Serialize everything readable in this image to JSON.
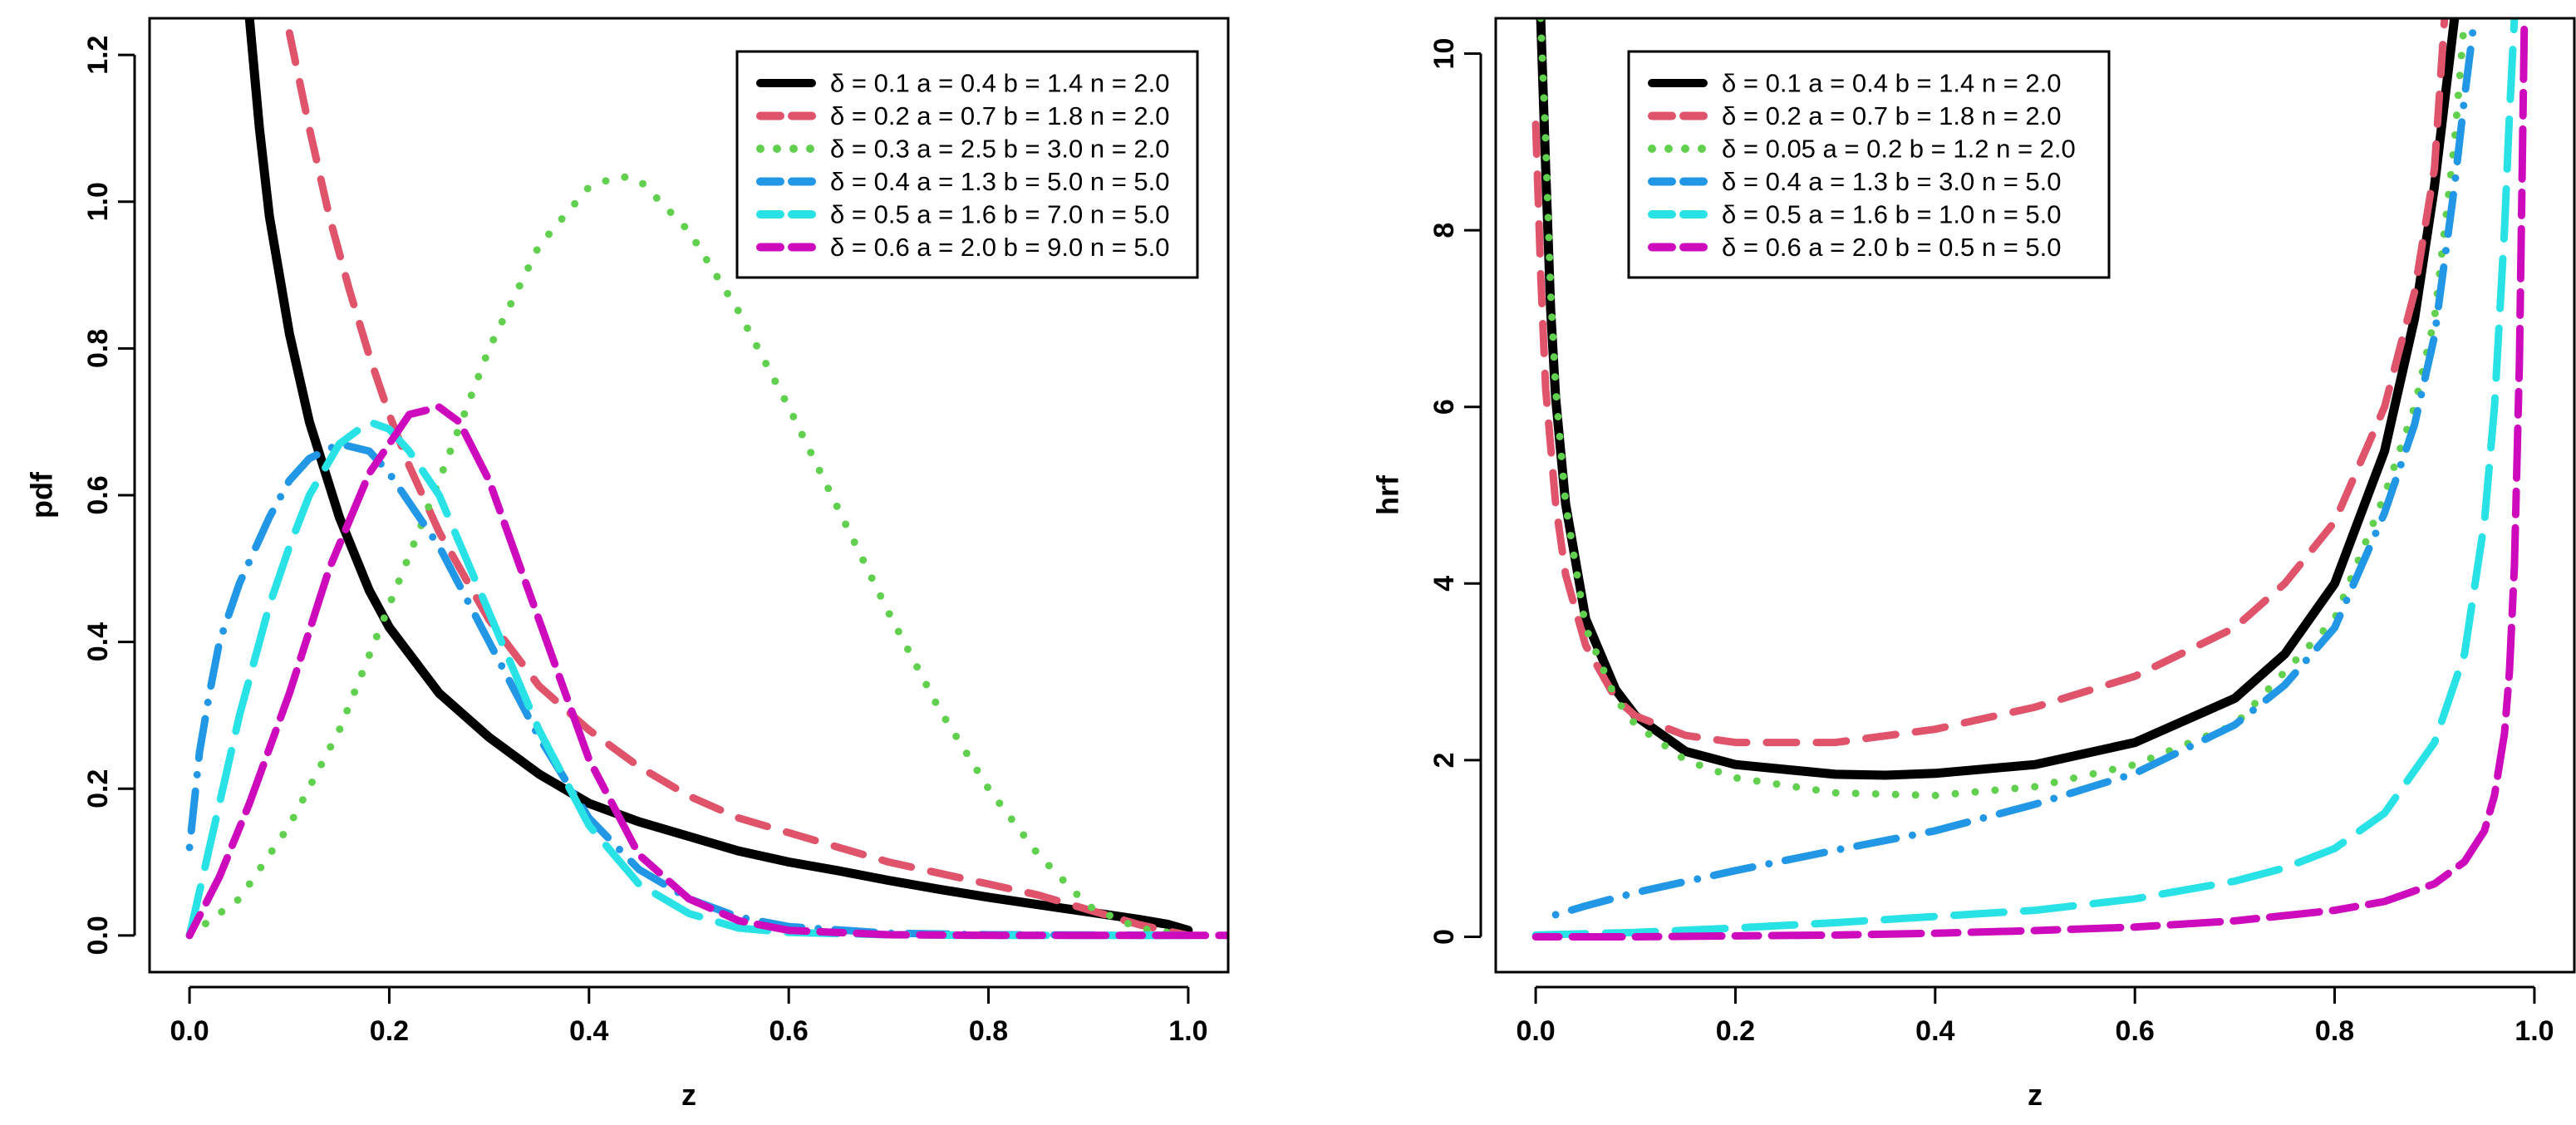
{
  "chart_data": [
    {
      "type": "line",
      "xlabel": "z",
      "ylabel": "pdf",
      "xlim": [
        -0.04,
        1.04
      ],
      "ylim": [
        -0.05,
        1.25
      ],
      "xticks": [
        "0.0",
        "0.2",
        "0.4",
        "0.6",
        "0.8",
        "1.0"
      ],
      "yticks": [
        "0.0",
        "0.2",
        "0.4",
        "0.6",
        "0.8",
        "1.0",
        "1.2"
      ],
      "legend_position": "top-right",
      "series": [
        {
          "name": "δ = 0.1  a = 0.4  b = 1.4  n = 2.0",
          "color": "#000000",
          "style": "solid",
          "x": [
            0.06,
            0.07,
            0.08,
            0.1,
            0.12,
            0.15,
            0.18,
            0.2,
            0.25,
            0.3,
            0.35,
            0.4,
            0.45,
            0.5,
            0.55,
            0.6,
            0.65,
            0.7,
            0.75,
            0.8,
            0.85,
            0.9,
            0.95,
            0.98,
            1.0
          ],
          "y": [
            1.25,
            1.1,
            0.98,
            0.82,
            0.7,
            0.57,
            0.47,
            0.42,
            0.33,
            0.27,
            0.22,
            0.18,
            0.155,
            0.135,
            0.115,
            0.1,
            0.088,
            0.075,
            0.063,
            0.052,
            0.042,
            0.032,
            0.022,
            0.015,
            0.007
          ]
        },
        {
          "name": "δ = 0.2  a = 0.7  b = 1.8  n = 2.0",
          "color": "#DF536B",
          "style": "dashed",
          "x": [
            0.1,
            0.12,
            0.14,
            0.16,
            0.18,
            0.2,
            0.22,
            0.25,
            0.3,
            0.35,
            0.4,
            0.45,
            0.5,
            0.55,
            0.6,
            0.65,
            0.7,
            0.75,
            0.8,
            0.85,
            0.9,
            0.95,
            1.0
          ],
          "y": [
            1.23,
            1.1,
            0.98,
            0.88,
            0.79,
            0.71,
            0.64,
            0.55,
            0.43,
            0.34,
            0.28,
            0.23,
            0.19,
            0.16,
            0.14,
            0.12,
            0.1,
            0.085,
            0.07,
            0.055,
            0.035,
            0.015,
            0.0
          ]
        },
        {
          "name": "δ = 0.3  a = 2.5  b = 3.0  n = 2.0",
          "color": "#61D04F",
          "style": "dotted",
          "x": [
            0.0,
            0.05,
            0.1,
            0.15,
            0.2,
            0.25,
            0.3,
            0.35,
            0.4,
            0.43,
            0.45,
            0.5,
            0.55,
            0.6,
            0.65,
            0.7,
            0.75,
            0.8,
            0.85,
            0.9,
            0.95,
            1.0
          ],
          "y": [
            0.0,
            0.05,
            0.15,
            0.28,
            0.45,
            0.62,
            0.8,
            0.94,
            1.02,
            1.035,
            1.03,
            0.96,
            0.85,
            0.72,
            0.58,
            0.44,
            0.31,
            0.2,
            0.11,
            0.04,
            0.01,
            0.0
          ]
        },
        {
          "name": "δ = 0.4  a = 1.3  b = 5.0  n = 5.0",
          "color": "#2297E6",
          "style": "dotdash",
          "x": [
            0.0,
            0.01,
            0.02,
            0.03,
            0.05,
            0.08,
            0.1,
            0.12,
            0.15,
            0.18,
            0.2,
            0.25,
            0.3,
            0.35,
            0.4,
            0.45,
            0.5,
            0.55,
            0.6,
            0.7,
            0.8,
            1.0
          ],
          "y": [
            0.12,
            0.25,
            0.33,
            0.4,
            0.48,
            0.57,
            0.62,
            0.65,
            0.67,
            0.66,
            0.63,
            0.53,
            0.4,
            0.27,
            0.16,
            0.09,
            0.05,
            0.025,
            0.012,
            0.003,
            0.001,
            0.0
          ]
        },
        {
          "name": "δ = 0.5  a = 1.6  b = 7.0  n = 5.0",
          "color": "#28E2E5",
          "style": "longdash",
          "x": [
            0.0,
            0.02,
            0.05,
            0.08,
            0.1,
            0.12,
            0.15,
            0.18,
            0.2,
            0.22,
            0.25,
            0.3,
            0.35,
            0.4,
            0.45,
            0.5,
            0.55,
            0.6,
            0.7,
            0.8,
            1.0
          ],
          "y": [
            0.0,
            0.12,
            0.3,
            0.45,
            0.53,
            0.6,
            0.67,
            0.7,
            0.69,
            0.66,
            0.6,
            0.44,
            0.28,
            0.15,
            0.07,
            0.03,
            0.01,
            0.004,
            0.001,
            0.0,
            0.0
          ]
        },
        {
          "name": "δ = 0.6  a = 2.0  b = 9.0  n = 5.0",
          "color": "#CD0BBC",
          "style": "twodash",
          "x": [
            0.0,
            0.03,
            0.06,
            0.1,
            0.14,
            0.18,
            0.22,
            0.25,
            0.27,
            0.3,
            0.35,
            0.4,
            0.45,
            0.5,
            0.55,
            0.6,
            0.7,
            0.8,
            1.0,
            1.04
          ],
          "y": [
            0.0,
            0.08,
            0.18,
            0.33,
            0.5,
            0.63,
            0.71,
            0.72,
            0.7,
            0.62,
            0.43,
            0.24,
            0.11,
            0.05,
            0.02,
            0.007,
            0.001,
            0.0,
            0.0,
            0.0
          ]
        }
      ]
    },
    {
      "type": "line",
      "xlabel": "z",
      "ylabel": "hrf",
      "xlim": [
        -0.04,
        1.04
      ],
      "ylim": [
        -0.4,
        10.4
      ],
      "xticks": [
        "0.0",
        "0.2",
        "0.4",
        "0.6",
        "0.8",
        "1.0"
      ],
      "yticks": [
        "0",
        "2",
        "4",
        "6",
        "8",
        "10"
      ],
      "legend_position": "top-left",
      "series": [
        {
          "name": "δ = 0.1  a = 0.4  b = 1.4  n = 2.0",
          "color": "#000000",
          "style": "solid",
          "x": [
            0.005,
            0.01,
            0.015,
            0.02,
            0.03,
            0.05,
            0.08,
            0.1,
            0.15,
            0.2,
            0.3,
            0.35,
            0.4,
            0.5,
            0.6,
            0.7,
            0.75,
            0.8,
            0.85,
            0.88,
            0.9,
            0.92
          ],
          "y": [
            10.4,
            8.7,
            7.1,
            6.1,
            4.9,
            3.6,
            2.8,
            2.5,
            2.1,
            1.95,
            1.84,
            1.83,
            1.85,
            1.95,
            2.2,
            2.7,
            3.2,
            4.0,
            5.5,
            7.0,
            8.5,
            10.4
          ]
        },
        {
          "name": "δ = 0.2  a = 0.7  b = 1.8  n = 2.0",
          "color": "#DF536B",
          "style": "dashed",
          "x": [
            0.0,
            0.005,
            0.01,
            0.02,
            0.03,
            0.05,
            0.08,
            0.1,
            0.15,
            0.2,
            0.3,
            0.4,
            0.5,
            0.6,
            0.7,
            0.75,
            0.8,
            0.85,
            0.88,
            0.9,
            0.91
          ],
          "y": [
            9.2,
            7.5,
            6.2,
            4.9,
            4.1,
            3.3,
            2.7,
            2.5,
            2.28,
            2.2,
            2.2,
            2.35,
            2.6,
            2.95,
            3.5,
            4.0,
            4.7,
            6.0,
            7.3,
            8.7,
            10.4
          ]
        },
        {
          "name": "δ = 0.05  a = 0.2  b = 1.2  n = 2.0",
          "color": "#61D04F",
          "style": "dotted",
          "x": [
            0.005,
            0.01,
            0.015,
            0.02,
            0.03,
            0.05,
            0.08,
            0.1,
            0.15,
            0.2,
            0.3,
            0.4,
            0.5,
            0.6,
            0.7,
            0.8,
            0.85,
            0.88,
            0.9,
            0.92,
            0.93
          ],
          "y": [
            10.4,
            9.0,
            7.3,
            6.2,
            4.9,
            3.5,
            2.7,
            2.4,
            2.0,
            1.8,
            1.63,
            1.6,
            1.7,
            1.95,
            2.4,
            3.6,
            5.0,
            6.0,
            7.0,
            9.0,
            10.4
          ]
        },
        {
          "name": "δ = 0.4  a = 1.3  b = 3.0  n = 5.0",
          "color": "#2297E6",
          "style": "dotdash",
          "x": [
            0.02,
            0.05,
            0.1,
            0.2,
            0.3,
            0.4,
            0.5,
            0.6,
            0.7,
            0.75,
            0.8,
            0.85,
            0.88,
            0.9,
            0.92,
            0.93,
            0.94
          ],
          "y": [
            0.25,
            0.35,
            0.5,
            0.75,
            0.98,
            1.2,
            1.5,
            1.85,
            2.4,
            2.85,
            3.5,
            4.8,
            5.8,
            6.8,
            8.5,
            9.5,
            10.4
          ]
        },
        {
          "name": "δ = 0.5  a = 1.6  b = 1.0  n = 5.0",
          "color": "#28E2E5",
          "style": "longdash",
          "x": [
            0.0,
            0.1,
            0.2,
            0.3,
            0.4,
            0.5,
            0.6,
            0.7,
            0.75,
            0.8,
            0.85,
            0.9,
            0.93,
            0.95,
            0.96,
            0.97,
            0.975,
            0.98
          ],
          "y": [
            0.02,
            0.05,
            0.1,
            0.16,
            0.23,
            0.3,
            0.43,
            0.63,
            0.78,
            1.0,
            1.4,
            2.2,
            3.2,
            4.7,
            6.0,
            8.0,
            9.3,
            10.4
          ]
        },
        {
          "name": "δ = 0.6  a = 2.0  b = 0.5  n = 5.0",
          "color": "#CD0BBC",
          "style": "twodash",
          "x": [
            0.0,
            0.1,
            0.2,
            0.3,
            0.4,
            0.5,
            0.6,
            0.7,
            0.8,
            0.85,
            0.9,
            0.93,
            0.95,
            0.96,
            0.97,
            0.975,
            0.98,
            0.985,
            0.99
          ],
          "y": [
            0.0,
            0.0,
            0.01,
            0.02,
            0.04,
            0.07,
            0.11,
            0.18,
            0.3,
            0.4,
            0.6,
            0.85,
            1.2,
            1.6,
            2.3,
            3.0,
            4.2,
            6.5,
            10.4
          ]
        }
      ]
    }
  ]
}
